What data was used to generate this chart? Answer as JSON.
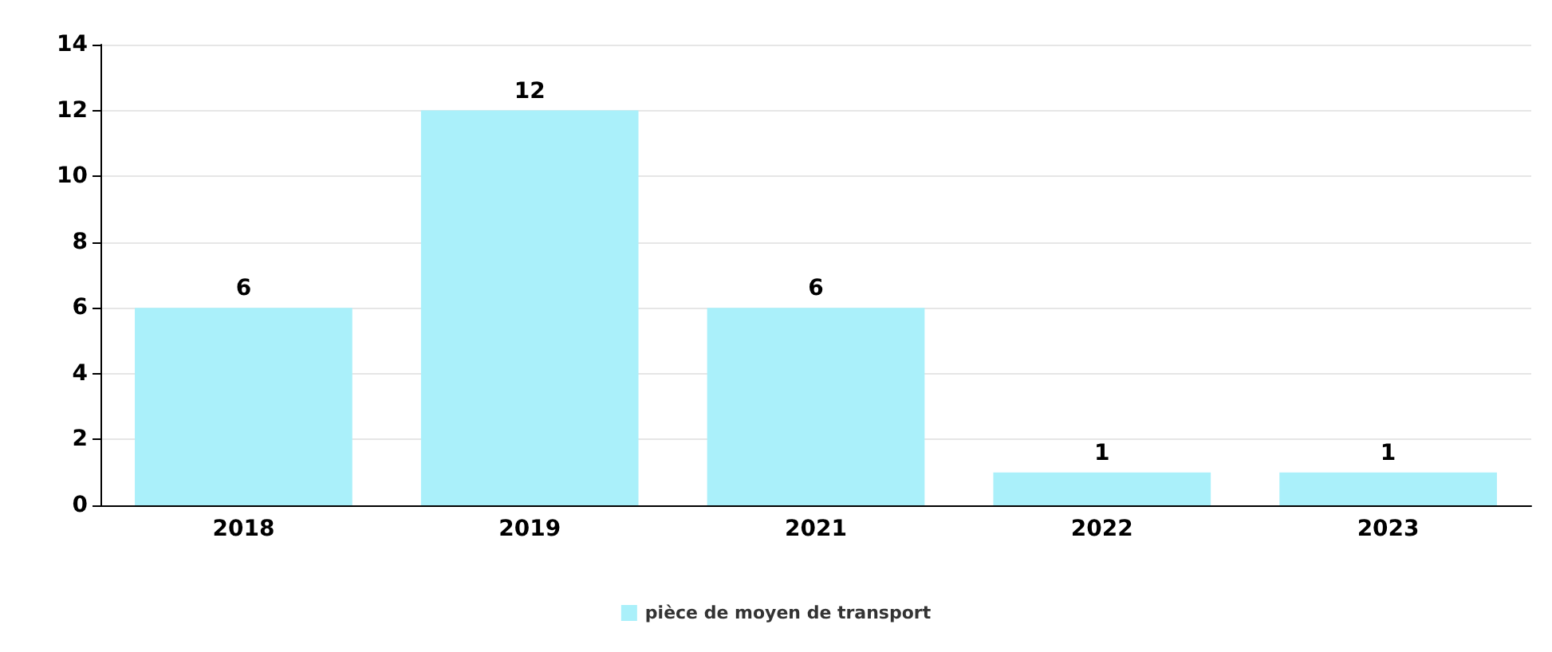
{
  "chart_data": {
    "type": "bar",
    "categories": [
      "2018",
      "2019",
      "2021",
      "2022",
      "2023"
    ],
    "series": [
      {
        "name": "pièce de moyen de transport",
        "color": "#aaf0fa",
        "values": [
          6,
          12,
          6,
          1,
          1
        ]
      }
    ],
    "ylim": [
      0,
      14
    ],
    "yticks": [
      0,
      2,
      4,
      6,
      8,
      10,
      12,
      14
    ],
    "grid": "y",
    "legend": "bottom",
    "data_labels": true
  }
}
